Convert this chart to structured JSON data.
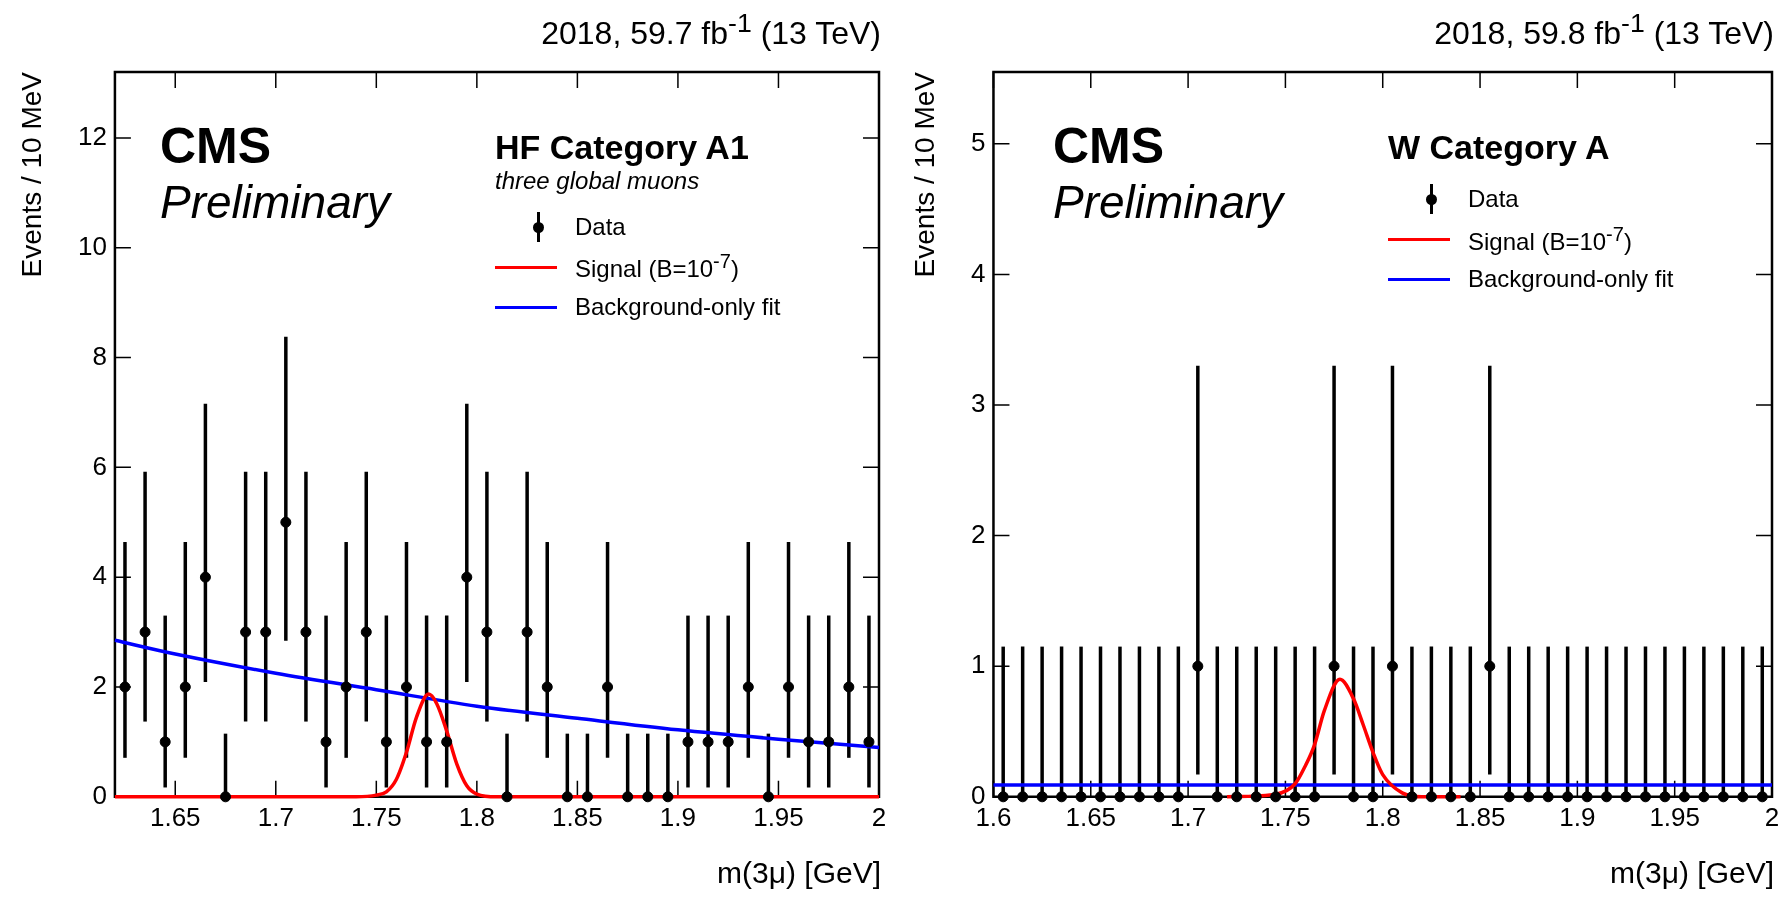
{
  "chart_data": [
    {
      "type": "scatter",
      "title": "2018, 59.7 fb$^{-1}$ (13 TeV)",
      "xlabel": "m(3μ) [GeV]",
      "ylabel": "Events / 10 MeV",
      "annotations": [
        "CMS",
        "Preliminary",
        "HF Category A1",
        "three global muons"
      ],
      "legend": "top right",
      "xlim": [
        1.62,
        2.0
      ],
      "xticks": [
        1.65,
        1.7,
        1.75,
        1.8,
        1.85,
        1.9,
        1.95,
        2
      ],
      "ylim": [
        0,
        13.2
      ],
      "yticks": [
        0,
        2,
        4,
        6,
        8,
        10,
        12
      ],
      "series": [
        {
          "name": "Data",
          "type": "scatter",
          "marker": "circle",
          "color": "#000000",
          "x": [
            1.625,
            1.635,
            1.645,
            1.655,
            1.665,
            1.675,
            1.685,
            1.695,
            1.705,
            1.715,
            1.725,
            1.735,
            1.745,
            1.755,
            1.765,
            1.775,
            1.785,
            1.795,
            1.805,
            1.815,
            1.825,
            1.835,
            1.845,
            1.855,
            1.865,
            1.875,
            1.885,
            1.895,
            1.905,
            1.915,
            1.925,
            1.935,
            1.945,
            1.955,
            1.965,
            1.975,
            1.985,
            1.995
          ],
          "values": [
            2,
            3,
            1,
            2,
            4,
            0,
            3,
            3,
            5,
            3,
            1,
            2,
            3,
            1,
            2,
            1,
            1,
            4,
            3,
            0,
            3,
            2,
            0,
            0,
            2,
            0,
            0,
            0,
            1,
            1,
            1,
            2,
            0,
            2,
            1,
            1,
            2,
            1
          ],
          "errors": [
            [
              0.71,
              4.64
            ],
            [
              1.37,
              5.92
            ],
            [
              0.17,
              3.3
            ],
            [
              0.71,
              4.64
            ],
            [
              2.09,
              7.16
            ],
            [
              0,
              1.15
            ],
            [
              1.37,
              5.92
            ],
            [
              1.37,
              5.92
            ],
            [
              2.84,
              8.38
            ],
            [
              1.37,
              5.92
            ],
            [
              0.17,
              3.3
            ],
            [
              0.71,
              4.64
            ],
            [
              1.37,
              5.92
            ],
            [
              0.17,
              3.3
            ],
            [
              0.71,
              4.64
            ],
            [
              0.17,
              3.3
            ],
            [
              0.17,
              3.3
            ],
            [
              2.09,
              7.16
            ],
            [
              1.37,
              5.92
            ],
            [
              0,
              1.15
            ],
            [
              1.37,
              5.92
            ],
            [
              0.71,
              4.64
            ],
            [
              0,
              1.15
            ],
            [
              0,
              1.15
            ],
            [
              0.71,
              4.64
            ],
            [
              0,
              1.15
            ],
            [
              0,
              1.15
            ],
            [
              0,
              1.15
            ],
            [
              0.17,
              3.3
            ],
            [
              0.17,
              3.3
            ],
            [
              0.17,
              3.3
            ],
            [
              0.71,
              4.64
            ],
            [
              0,
              1.15
            ],
            [
              0.71,
              4.64
            ],
            [
              0.17,
              3.3
            ],
            [
              0.17,
              3.3
            ],
            [
              0.71,
              4.64
            ],
            [
              0.17,
              3.3
            ]
          ]
        },
        {
          "name": "Signal (B=10$^{-7}$)",
          "type": "line",
          "marker": "none",
          "color": "#ff0000",
          "x": [
            1.62,
            1.74,
            1.75,
            1.755,
            1.76,
            1.765,
            1.77,
            1.776,
            1.78,
            1.785,
            1.79,
            1.795,
            1.8,
            1.81,
            2.0
          ],
          "values": [
            0,
            0,
            0.03,
            0.09,
            0.32,
            0.81,
            1.45,
            1.87,
            1.7,
            1.2,
            0.6,
            0.2,
            0.05,
            0,
            0
          ]
        },
        {
          "name": "Background-only fit",
          "type": "line",
          "marker": "none",
          "color": "#0000ff",
          "x": [
            1.62,
            1.65,
            1.7,
            1.75,
            1.8,
            1.85,
            1.9,
            1.95,
            2.0
          ],
          "values": [
            2.85,
            2.6,
            2.25,
            1.95,
            1.65,
            1.43,
            1.22,
            1.05,
            0.9
          ]
        }
      ]
    },
    {
      "type": "scatter",
      "title": "2018, 59.8 fb$^{-1}$ (13 TeV)",
      "xlabel": "m(3μ) [GeV]",
      "ylabel": "Events / 10 MeV",
      "annotations": [
        "CMS",
        "Preliminary",
        "W Category A"
      ],
      "legend": "top right",
      "xlim": [
        1.6,
        2.0
      ],
      "xticks": [
        1.6,
        1.65,
        1.7,
        1.75,
        1.8,
        1.85,
        1.9,
        1.95,
        2
      ],
      "ylim": [
        0,
        5.55
      ],
      "yticks": [
        0,
        1,
        2,
        3,
        4,
        5
      ],
      "series": [
        {
          "name": "Data",
          "type": "scatter",
          "marker": "circle",
          "color": "#000000",
          "x": [
            1.605,
            1.615,
            1.625,
            1.635,
            1.645,
            1.655,
            1.665,
            1.675,
            1.685,
            1.695,
            1.705,
            1.715,
            1.725,
            1.735,
            1.745,
            1.755,
            1.765,
            1.775,
            1.785,
            1.795,
            1.805,
            1.815,
            1.825,
            1.835,
            1.845,
            1.855,
            1.865,
            1.875,
            1.885,
            1.895,
            1.905,
            1.915,
            1.925,
            1.935,
            1.945,
            1.955,
            1.965,
            1.975,
            1.985,
            1.995
          ],
          "values": [
            0,
            0,
            0,
            0,
            0,
            0,
            0,
            0,
            0,
            0,
            1,
            0,
            0,
            0,
            0,
            0,
            0,
            1,
            0,
            0,
            1,
            0,
            0,
            0,
            0,
            1,
            0,
            0,
            0,
            0,
            0,
            0,
            0,
            0,
            0,
            0,
            0,
            0,
            0,
            0
          ],
          "errors": [
            [
              0,
              1.15
            ],
            [
              0,
              1.15
            ],
            [
              0,
              1.15
            ],
            [
              0,
              1.15
            ],
            [
              0,
              1.15
            ],
            [
              0,
              1.15
            ],
            [
              0,
              1.15
            ],
            [
              0,
              1.15
            ],
            [
              0,
              1.15
            ],
            [
              0,
              1.15
            ],
            [
              0.17,
              3.3
            ],
            [
              0,
              1.15
            ],
            [
              0,
              1.15
            ],
            [
              0,
              1.15
            ],
            [
              0,
              1.15
            ],
            [
              0,
              1.15
            ],
            [
              0,
              1.15
            ],
            [
              0.17,
              3.3
            ],
            [
              0,
              1.15
            ],
            [
              0,
              1.15
            ],
            [
              0.17,
              3.3
            ],
            [
              0,
              1.15
            ],
            [
              0,
              1.15
            ],
            [
              0,
              1.15
            ],
            [
              0,
              1.15
            ],
            [
              0.17,
              3.3
            ],
            [
              0,
              1.15
            ],
            [
              0,
              1.15
            ],
            [
              0,
              1.15
            ],
            [
              0,
              1.15
            ],
            [
              0,
              1.15
            ],
            [
              0,
              1.15
            ],
            [
              0,
              1.15
            ],
            [
              0,
              1.15
            ],
            [
              0,
              1.15
            ],
            [
              0,
              1.15
            ],
            [
              0,
              1.15
            ],
            [
              0,
              1.15
            ],
            [
              0,
              1.15
            ],
            [
              0,
              1.15
            ]
          ]
        },
        {
          "name": "Signal (B=10$^{-7}$)",
          "type": "line",
          "marker": "none",
          "color": "#ff0000",
          "x": [
            1.72,
            1.745,
            1.755,
            1.76,
            1.765,
            1.77,
            1.778,
            1.785,
            1.79,
            1.795,
            1.8,
            1.81,
            1.82,
            1.84
          ],
          "values": [
            0,
            0.02,
            0.1,
            0.23,
            0.4,
            0.66,
            0.9,
            0.75,
            0.55,
            0.34,
            0.17,
            0.03,
            0,
            0
          ]
        },
        {
          "name": "Background-only fit",
          "type": "line",
          "marker": "none",
          "color": "#0000ff",
          "x": [
            1.6,
            2.0
          ],
          "values": [
            0.09,
            0.09
          ]
        }
      ]
    }
  ]
}
